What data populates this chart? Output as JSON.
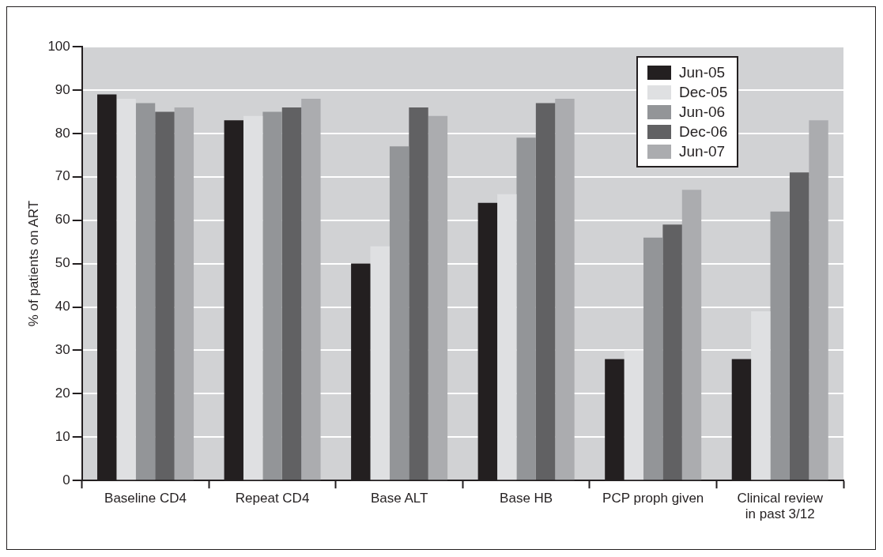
{
  "chart_data": {
    "type": "bar",
    "ylabel": "% of patients on ART",
    "categories": [
      "Baseline CD4",
      "Repeat CD4",
      "Base ALT",
      "Base HB",
      "PCP proph given",
      "Clinical review in past 3/12"
    ],
    "series": [
      {
        "name": "Jun-05",
        "color": "#231f20",
        "values": [
          89,
          83,
          50,
          64,
          28,
          28
        ]
      },
      {
        "name": "Dec-05",
        "color": "#dfe0e2",
        "values": [
          88,
          84,
          54,
          66,
          30,
          39
        ]
      },
      {
        "name": "Jun-06",
        "color": "#939598",
        "values": [
          87,
          85,
          77,
          79,
          56,
          62
        ]
      },
      {
        "name": "Dec-06",
        "color": "#616163",
        "values": [
          85,
          86,
          86,
          87,
          59,
          71
        ]
      },
      {
        "name": "Jun-07",
        "color": "#abacaf",
        "values": [
          86,
          88,
          84,
          88,
          67,
          83
        ]
      }
    ],
    "ylim": [
      0,
      100
    ],
    "yticks": [
      0,
      10,
      20,
      30,
      40,
      50,
      60,
      70,
      80,
      90,
      100
    ],
    "grid": "y",
    "legend": "top right"
  }
}
